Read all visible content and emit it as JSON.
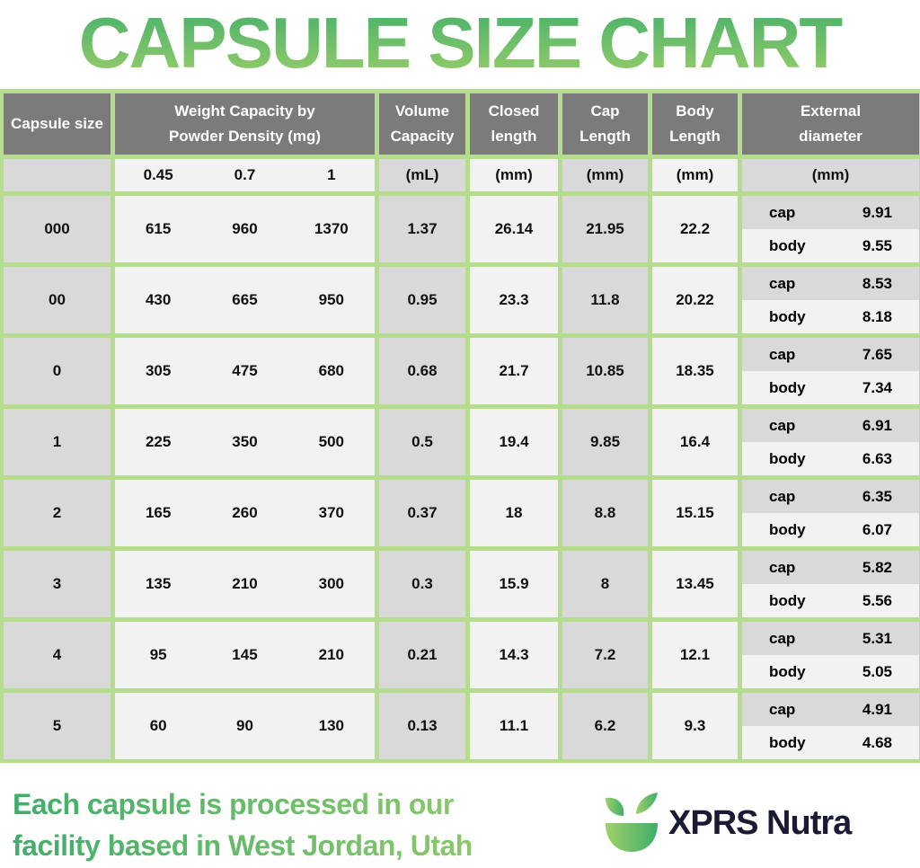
{
  "title": "CAPSULE SIZE CHART",
  "headers": {
    "capsule_size": "Capsule size",
    "weight": "Weight Capacity by Powder Density (mg)",
    "volume": "Volume Capacity",
    "closed": "Closed length",
    "cap": "Cap Length",
    "body": "Body Length",
    "external": "External diameter"
  },
  "units": {
    "capsule_size": "",
    "densities": [
      "0.45",
      "0.7",
      "1"
    ],
    "volume": "(mL)",
    "closed": "(mm)",
    "cap": "(mm)",
    "body": "(mm)",
    "external": "(mm)"
  },
  "ext_labels": {
    "cap": "cap",
    "body": "body"
  },
  "rows": [
    {
      "size": "000",
      "w": [
        "615",
        "960",
        "1370"
      ],
      "volume": "1.37",
      "closed": "26.14",
      "cap": "21.95",
      "body": "22.2",
      "ext_cap": "9.91",
      "ext_body": "9.55"
    },
    {
      "size": "00",
      "w": [
        "430",
        "665",
        "950"
      ],
      "volume": "0.95",
      "closed": "23.3",
      "cap": "11.8",
      "body": "20.22",
      "ext_cap": "8.53",
      "ext_body": "8.18"
    },
    {
      "size": "0",
      "w": [
        "305",
        "475",
        "680"
      ],
      "volume": "0.68",
      "closed": "21.7",
      "cap": "10.85",
      "body": "18.35",
      "ext_cap": "7.65",
      "ext_body": "7.34"
    },
    {
      "size": "1",
      "w": [
        "225",
        "350",
        "500"
      ],
      "volume": "0.5",
      "closed": "19.4",
      "cap": "9.85",
      "body": "16.4",
      "ext_cap": "6.91",
      "ext_body": "6.63"
    },
    {
      "size": "2",
      "w": [
        "165",
        "260",
        "370"
      ],
      "volume": "0.37",
      "closed": "18",
      "cap": "8.8",
      "body": "15.15",
      "ext_cap": "6.35",
      "ext_body": "6.07"
    },
    {
      "size": "3",
      "w": [
        "135",
        "210",
        "300"
      ],
      "volume": "0.3",
      "closed": "15.9",
      "cap": "8",
      "body": "13.45",
      "ext_cap": "5.82",
      "ext_body": "5.56"
    },
    {
      "size": "4",
      "w": [
        "95",
        "145",
        "210"
      ],
      "volume": "0.21",
      "closed": "14.3",
      "cap": "7.2",
      "body": "12.1",
      "ext_cap": "5.31",
      "ext_body": "5.05"
    },
    {
      "size": "5",
      "w": [
        "60",
        "90",
        "130"
      ],
      "volume": "0.13",
      "closed": "11.1",
      "cap": "6.2",
      "body": "9.3",
      "ext_cap": "4.91",
      "ext_body": "4.68"
    }
  ],
  "footer": {
    "line1": "Each capsule is processed in our",
    "line2": "facility based in West Jordan, Utah"
  },
  "brand": {
    "name": "XPRS Nutra",
    "icon": "bowl-with-leaves-icon"
  },
  "colors": {
    "border": "#b6dc8e",
    "header": "#7b7b7b",
    "gray_cell": "#d9d9d9",
    "light_cell": "#f2f2f2",
    "green_dark": "#3fae6a",
    "green_light": "#9fd06a",
    "brand_text": "#1b1a35"
  }
}
